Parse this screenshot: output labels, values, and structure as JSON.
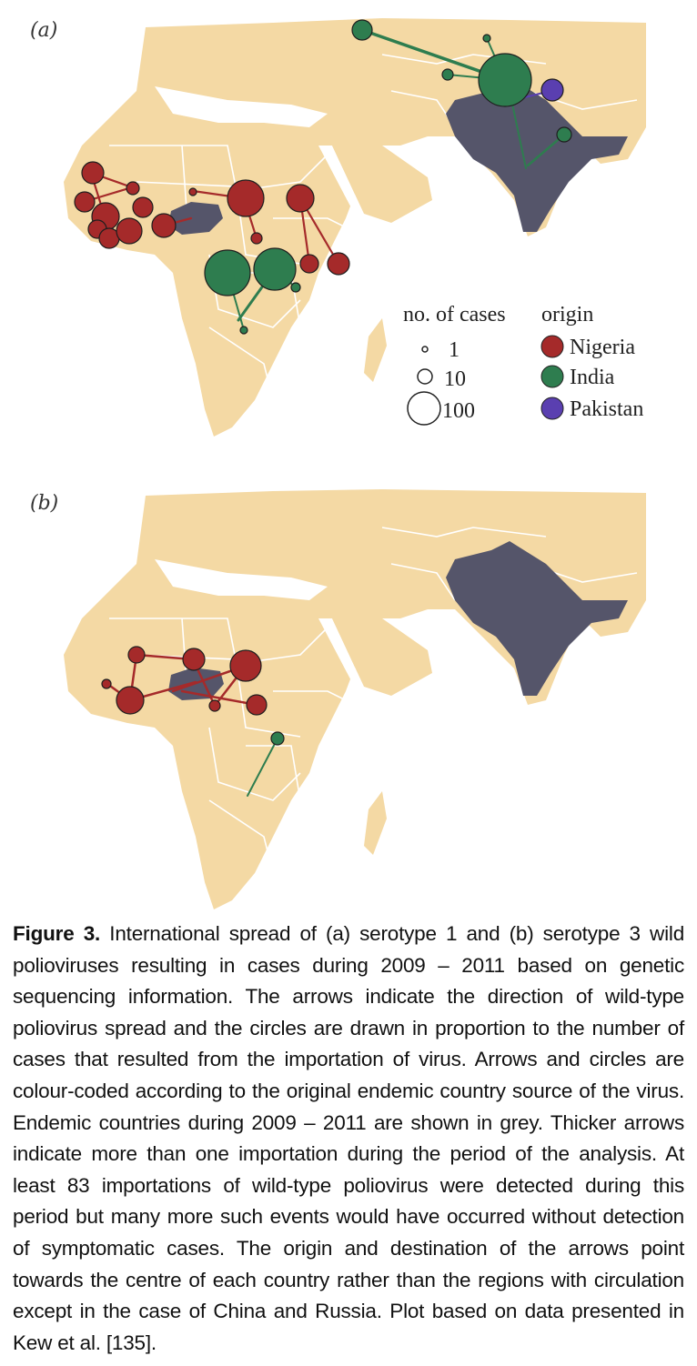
{
  "panels": [
    {
      "label": "(a)",
      "legend": {
        "size_title": "no. of cases",
        "size_items": [
          "1",
          "10",
          "100"
        ],
        "origin_title": "origin",
        "origin_items": [
          "Nigeria",
          "India",
          "Pakistan"
        ]
      }
    },
    {
      "label": "(b)"
    }
  ],
  "colors": {
    "land": "#f4d9a4",
    "border": "#ffffff",
    "endemic": "#55556a",
    "nigeria": "#a52a2a",
    "india": "#2e7d4f",
    "pakistan": "#5a3fb0"
  },
  "caption": {
    "label": "Figure 3.",
    "text": " International spread of (a) serotype 1 and (b) serotype 3 wild polioviruses resulting in cases during 2009 – 2011 based on genetic sequencing information. The arrows indicate the direction of wild-type poliovirus spread and the circles are drawn in proportion to the number of cases that resulted from the importation of virus. Arrows and circles are colour-coded according to the original endemic country source of the virus. Endemic countries during 2009 – 2011 are shown in grey. Thicker arrows indicate more than one importation during the period of the analysis. At least 83 importations of wild-type poliovirus were detected during this period but many more such events would have occurred without detection of symptomatic cases. The origin and destination of the arrows point towards the centre of each country rather than the regions with circulation except in the case of China and Russia. Plot based on data presented in Kew et al. [135]."
  }
}
